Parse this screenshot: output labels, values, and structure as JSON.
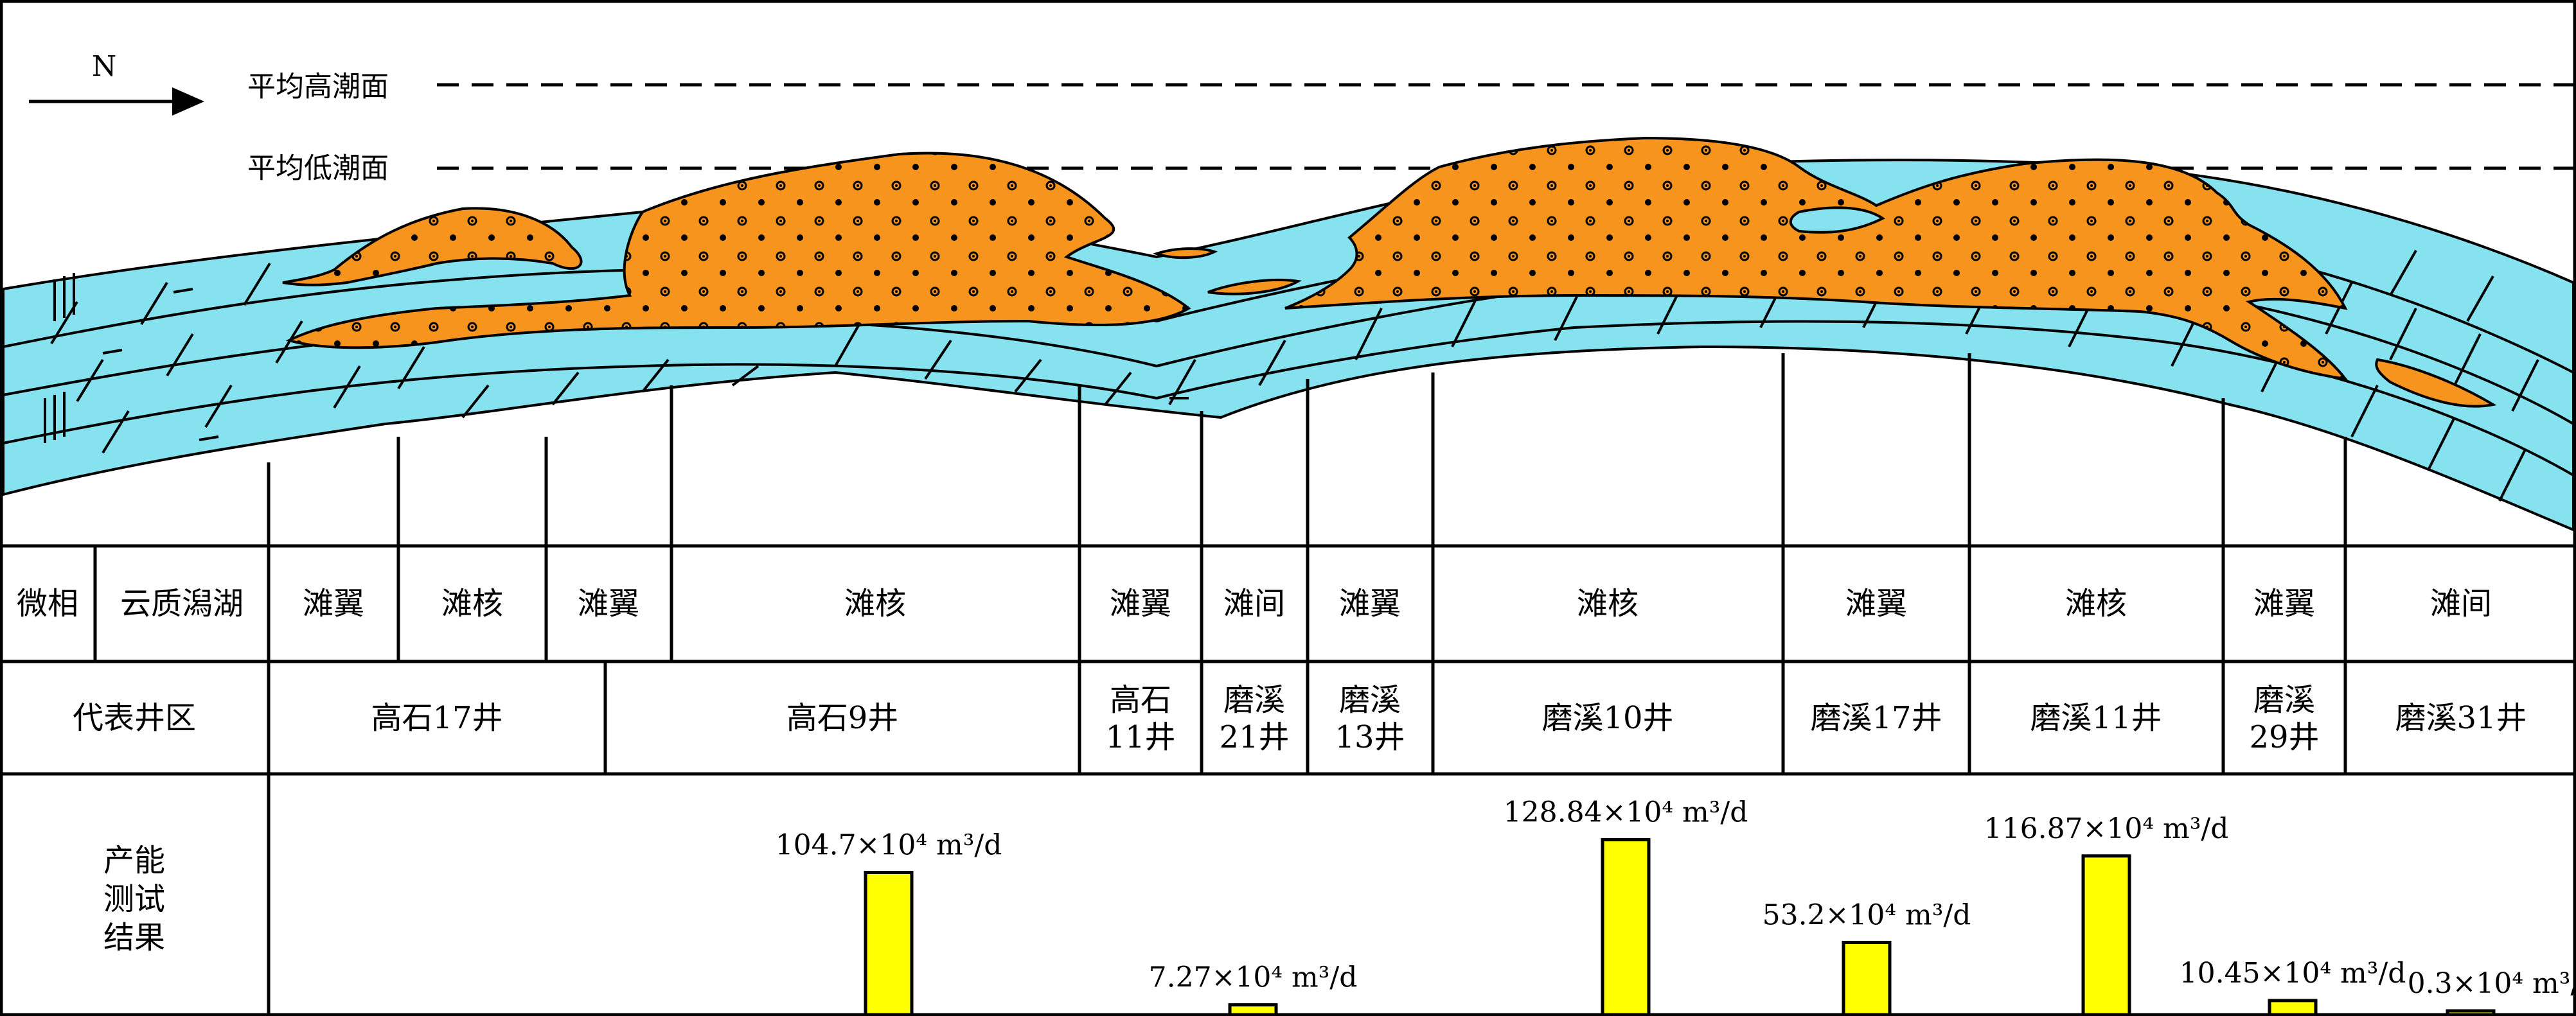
{
  "north_label": "N",
  "water_levels": {
    "high": "平均高潮面",
    "low": "平均低潮面"
  },
  "rows": {
    "facies_header": "微相",
    "well_header": "代表井区",
    "capacity_header_lines": [
      "产能",
      "测试",
      "结果"
    ]
  },
  "facies": [
    "云质潟湖",
    "滩翼",
    "滩核",
    "滩翼",
    "滩核",
    "滩翼",
    "滩间",
    "滩翼",
    "滩核",
    "滩翼",
    "滩核",
    "滩翼",
    "滩间"
  ],
  "wells": [
    {
      "lines": [
        "高石17井"
      ]
    },
    {
      "lines": [
        "高石9井"
      ]
    },
    {
      "lines": [
        "高石",
        "11井"
      ]
    },
    {
      "lines": [
        "磨溪",
        "21井"
      ]
    },
    {
      "lines": [
        "磨溪",
        "13井"
      ]
    },
    {
      "lines": [
        "磨溪10井"
      ]
    },
    {
      "lines": [
        "磨溪17井"
      ]
    },
    {
      "lines": [
        "磨溪11井"
      ]
    },
    {
      "lines": [
        "磨溪",
        "29井"
      ]
    },
    {
      "lines": [
        "磨溪31井"
      ]
    }
  ],
  "chart_data": {
    "type": "bar",
    "unit": "×10⁴ m³/d",
    "ylim": [
      0,
      130
    ],
    "series": [
      {
        "label_number": "104.7",
        "value": 104.7
      },
      {
        "label_number": "7.27",
        "value": 7.27
      },
      {
        "label_number": "128.84",
        "value": 128.84
      },
      {
        "label_number": "53.2",
        "value": 53.2
      },
      {
        "label_number": "116.87",
        "value": 116.87
      },
      {
        "label_number": "10.45",
        "value": 10.45
      },
      {
        "label_number": "0.3",
        "value": 0.3
      }
    ]
  },
  "colors": {
    "water": "#87e2ef",
    "shoal": "#f7941d",
    "bar": "#ffff00",
    "line": "#000000"
  }
}
